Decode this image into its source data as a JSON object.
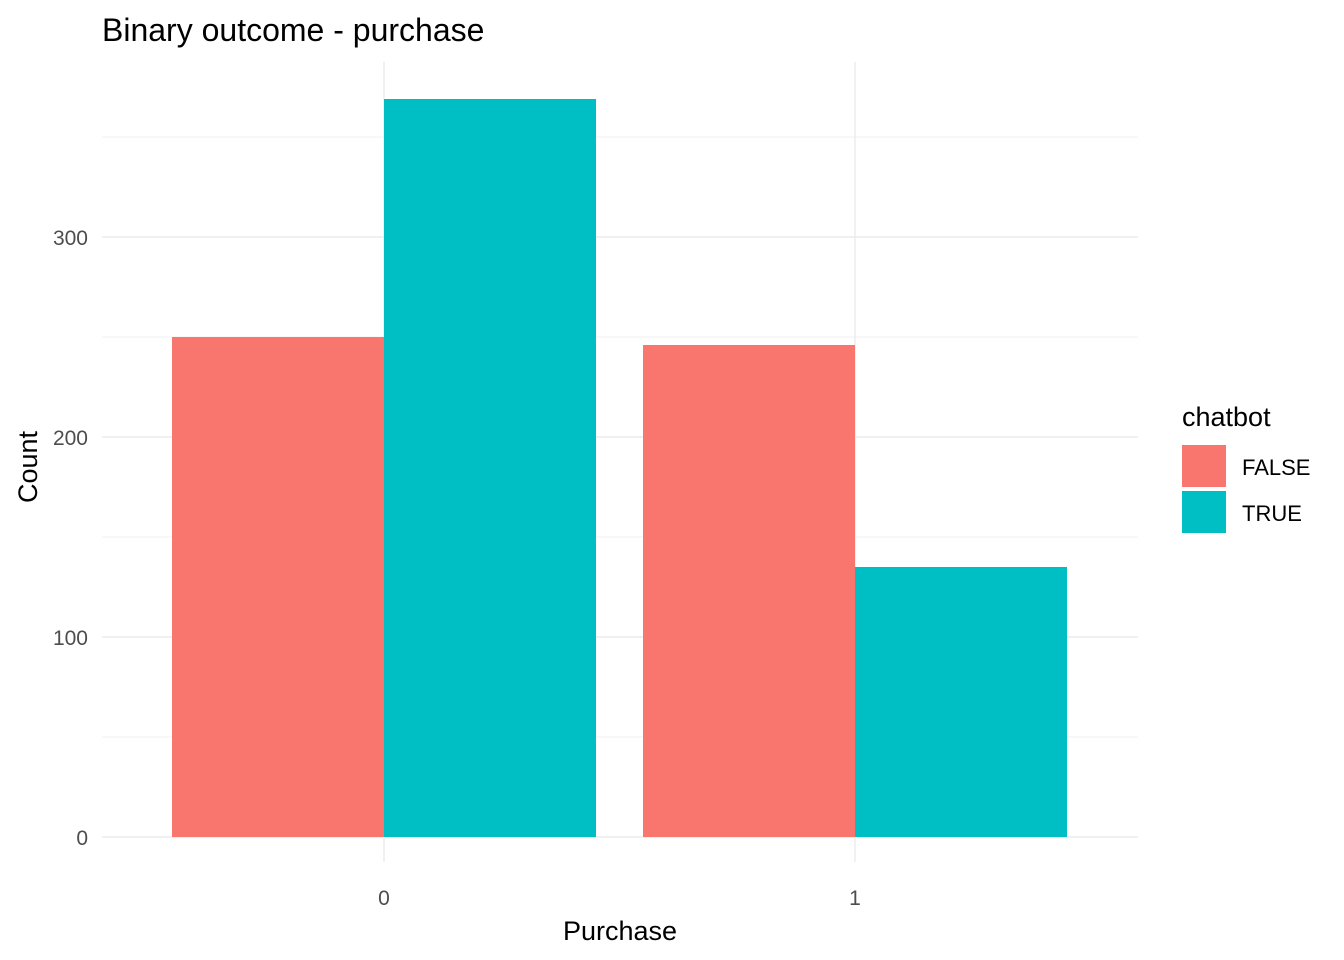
{
  "chart_data": {
    "type": "bar",
    "title": "Binary outcome - purchase",
    "xlabel": "Purchase",
    "ylabel": "Count",
    "categories": [
      "0",
      "1"
    ],
    "series": [
      {
        "name": "FALSE",
        "values": [
          250,
          246
        ],
        "color": "#F8766D"
      },
      {
        "name": "TRUE",
        "values": [
          369,
          135
        ],
        "color": "#00BFC4"
      }
    ],
    "ylim": [
      0,
      375
    ],
    "yticks": [
      0,
      100,
      200,
      300
    ],
    "grid": true,
    "legend": {
      "title": "chatbot",
      "position": "right"
    }
  }
}
